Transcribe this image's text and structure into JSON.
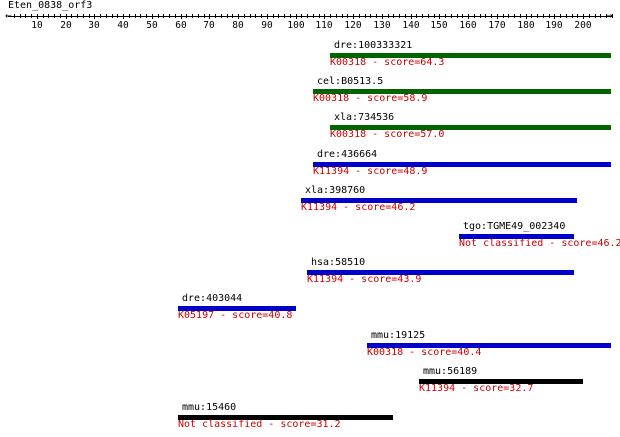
{
  "title": "Eten_0838_orf3",
  "axis": {
    "min": 0,
    "max": 210,
    "major_ticks": [
      10,
      20,
      30,
      40,
      50,
      60,
      70,
      80,
      90,
      100,
      110,
      120,
      130,
      140,
      150,
      160,
      170,
      180,
      190,
      200
    ],
    "minor_step": 2
  },
  "colors": {
    "green": "#006400",
    "blue": "#0000cc",
    "black": "#000000",
    "score_text": "#cc0000"
  },
  "hits": [
    {
      "name": "dre:100333321",
      "start": 112,
      "end": 210,
      "color": "green",
      "score_label": "K00318 - score=64.3"
    },
    {
      "name": "cel:B0513.5",
      "start": 106,
      "end": 210,
      "color": "green",
      "score_label": "K00318 - score=58.9"
    },
    {
      "name": "xla:734536",
      "start": 112,
      "end": 210,
      "color": "green",
      "score_label": "K00318 - score=57.0"
    },
    {
      "name": "dre:436664",
      "start": 106,
      "end": 210,
      "color": "blue",
      "score_label": "K11394 - score=48.9"
    },
    {
      "name": "xla:398760",
      "start": 102,
      "end": 198,
      "color": "blue",
      "score_label": "K11394 - score=46.2"
    },
    {
      "name": "tgo:TGME49_002340",
      "start": 157,
      "end": 197,
      "color": "blue",
      "score_label": "Not classified - score=46.2"
    },
    {
      "name": "hsa:58510",
      "start": 104,
      "end": 197,
      "color": "blue",
      "score_label": "K11394 - score=43.9"
    },
    {
      "name": "dre:403044",
      "start": 59,
      "end": 100,
      "color": "blue",
      "score_label": "K05197 - score=40.8"
    },
    {
      "name": "mmu:19125",
      "start": 125,
      "end": 210,
      "color": "blue",
      "score_label": "K00318 - score=40.4"
    },
    {
      "name": "mmu:56189",
      "start": 143,
      "end": 200,
      "color": "black",
      "score_label": "K11394 - score=32.7"
    },
    {
      "name": "mmu:15460",
      "start": 59,
      "end": 134,
      "color": "black",
      "score_label": "Not classified - score=31.2"
    }
  ]
}
